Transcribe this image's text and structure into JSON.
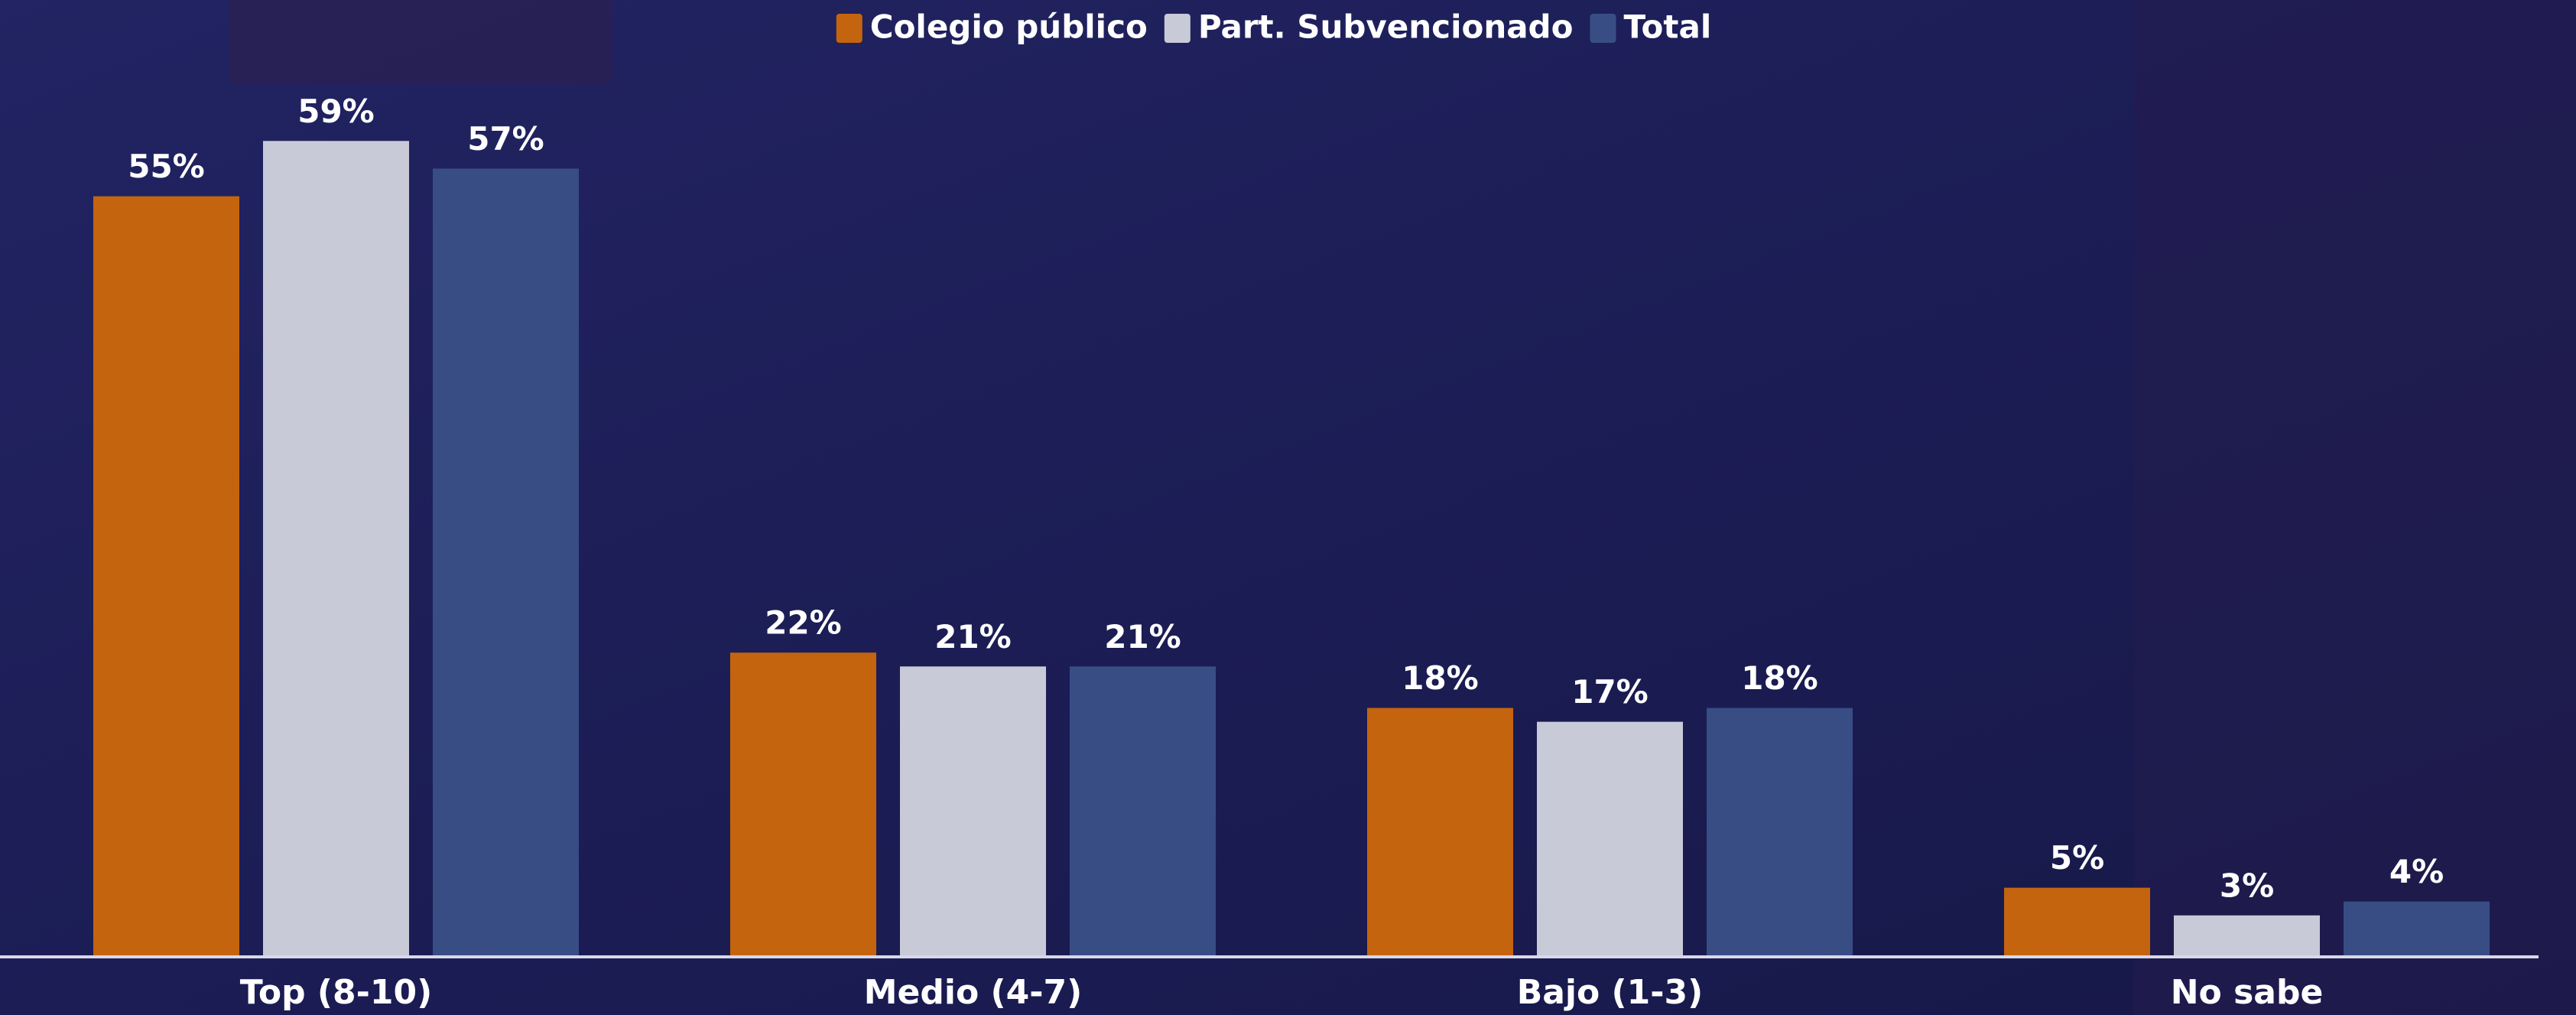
{
  "chart_data": {
    "type": "bar",
    "categories": [
      "Top (8-10)",
      "Medio (4-7)",
      "Bajo (1-3)",
      "No sabe"
    ],
    "series": [
      {
        "name": "Colegio público",
        "color": "#c4640f",
        "values": [
          55,
          22,
          18,
          5
        ],
        "value_labels": [
          "55%",
          "22%",
          "18%",
          "5%"
        ]
      },
      {
        "name": "Part. Subvencionado",
        "color": "#c8cad8",
        "values": [
          59,
          21,
          17,
          3
        ],
        "value_labels": [
          "59%",
          "21%",
          "17%",
          "3%"
        ]
      },
      {
        "name": "Total",
        "color": "#394d85",
        "values": [
          57,
          21,
          18,
          4
        ],
        "value_labels": [
          "57%",
          "21%",
          "18%",
          "4%"
        ]
      }
    ]
  }
}
